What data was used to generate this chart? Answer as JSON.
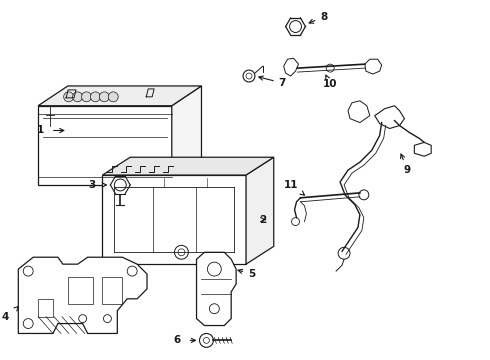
{
  "background_color": "#ffffff",
  "line_color": "#1a1a1a",
  "lw": 0.9,
  "figsize": [
    4.9,
    3.6
  ],
  "dpi": 100
}
